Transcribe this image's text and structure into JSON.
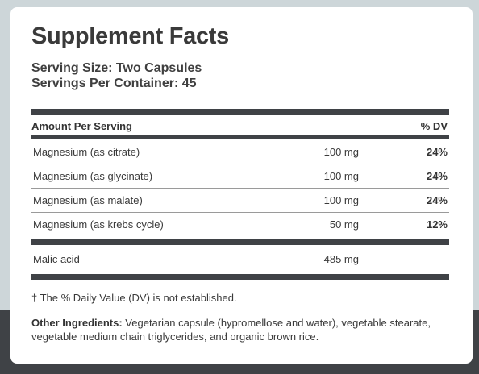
{
  "title": "Supplement Facts",
  "serving_size": "Serving Size: Two Capsules",
  "servings_per_container": "Servings Per Container: 45",
  "table": {
    "header_amount": "Amount Per Serving",
    "header_dv": "% DV",
    "rows": [
      {
        "name": "Magnesium (as citrate)",
        "amount": "100 mg",
        "dv": "24%"
      },
      {
        "name": "Magnesium (as glycinate)",
        "amount": "100 mg",
        "dv": "24%"
      },
      {
        "name": "Magnesium (as malate)",
        "amount": "100 mg",
        "dv": "24%"
      },
      {
        "name": "Magnesium (as krebs cycle)",
        "amount": "50 mg",
        "dv": "12%"
      }
    ],
    "extra_rows": [
      {
        "name": "Malic acid",
        "amount": "485 mg",
        "dv": ""
      }
    ]
  },
  "footnote": "† The % Daily Value (DV) is not established.",
  "other_ingredients": {
    "label": "Other Ingredients:",
    "text": " Vegetarian capsule (hypromellose and water), vegetable stearate, vegetable medium chain triglycerides, and organic brown rice."
  }
}
